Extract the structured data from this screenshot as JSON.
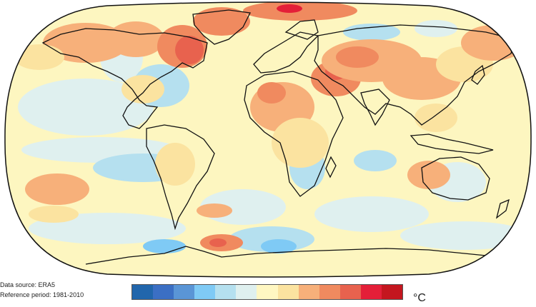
{
  "colorbar": {
    "colors": [
      "#2166ac",
      "#3b6fc4",
      "#5a95d6",
      "#7fcaf5",
      "#b5e0ef",
      "#dff0ef",
      "#fff7c2",
      "#fbe3a0",
      "#f7b07a",
      "#f08a5f",
      "#e8624e",
      "#e41f38",
      "#c4161f"
    ],
    "unit": "°C"
  },
  "meta": {
    "source": "Data source: ERA5",
    "reference": "Reference period: 1981-2010"
  },
  "map": {
    "projection": "robinson",
    "ocean_base_color": "#fdf6c0"
  }
}
